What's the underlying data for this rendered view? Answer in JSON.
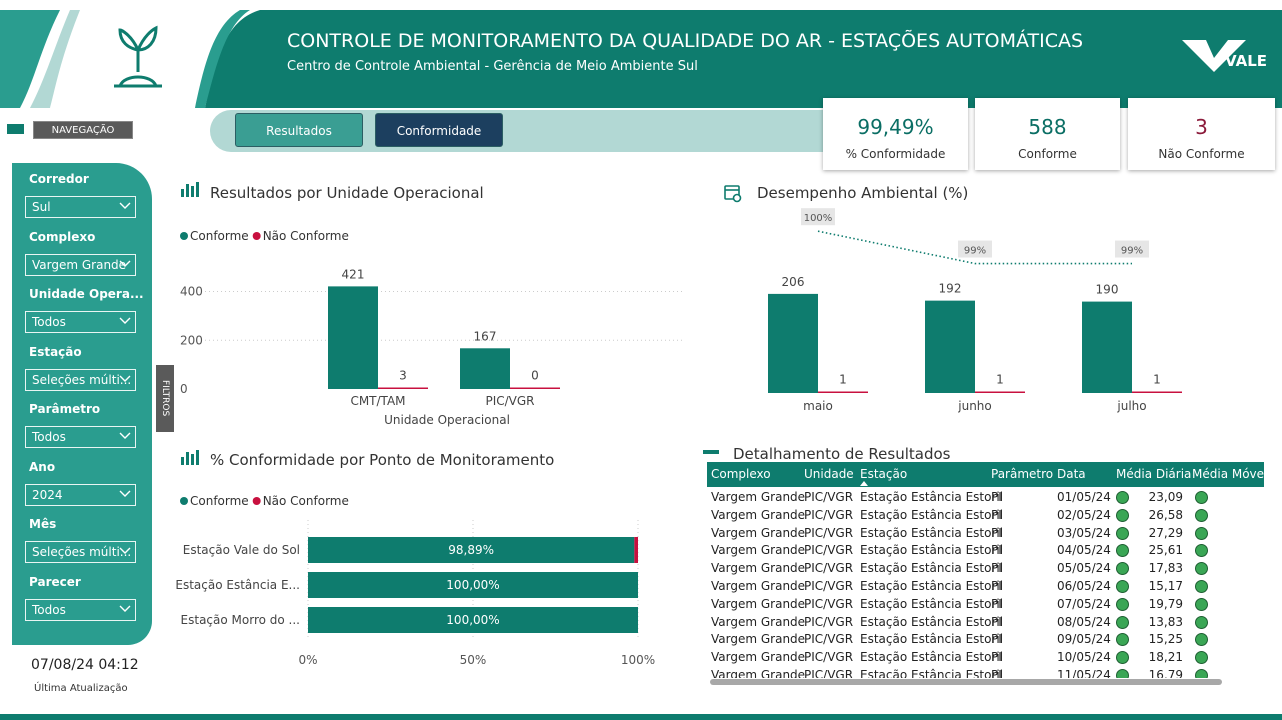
{
  "header": {
    "title": "CONTROLE DE MONITORAMENTO DA QUALIDADE DO AR - ESTAÇÕES AUTOMÁTICAS",
    "subtitle": "Centro de Controle Ambiental - Gerência de Meio Ambiente Sul",
    "logo": "VALE"
  },
  "nav": {
    "label": "NAVEGAÇÃO",
    "buttons": [
      "Resultados",
      "Conformidade"
    ]
  },
  "kpis": [
    {
      "value": "99,49%",
      "label": "% Conformidade"
    },
    {
      "value": "588",
      "label": "Conforme"
    },
    {
      "value": "3",
      "label": "Não Conforme"
    }
  ],
  "filters": [
    {
      "label": "Corredor",
      "value": "Sul"
    },
    {
      "label": "Complexo",
      "value": "Vargem Grande"
    },
    {
      "label": "Unidade Opera...",
      "value": "Todos"
    },
    {
      "label": "Estação",
      "value": "Seleções múlti..."
    },
    {
      "label": "Parâmetro",
      "value": "Todos"
    },
    {
      "label": "Ano",
      "value": "2024"
    },
    {
      "label": "Mês",
      "value": "Seleções múlti..."
    },
    {
      "label": "Parecer",
      "value": "Todos"
    }
  ],
  "filters_tab": "FILTROS",
  "update": {
    "time": "07/08/24 04:12",
    "label": "Última Atualização"
  },
  "chart_data": [
    {
      "type": "bar",
      "title": "Resultados por Unidade Operacional",
      "x_label": "Unidade Operacional",
      "categories": [
        "CMT/TAM",
        "PIC/VGR"
      ],
      "series": [
        {
          "name": "Conforme",
          "color": "#0e7c6e",
          "values": [
            421,
            167
          ]
        },
        {
          "name": "Não Conforme",
          "color": "#c8103f",
          "values": [
            3,
            0
          ]
        }
      ],
      "ylim": [
        0,
        480
      ],
      "yticks": [
        0,
        200,
        400
      ],
      "grid": true,
      "legend": "top-left"
    },
    {
      "type": "combo",
      "title": "Desempenho Ambiental (%)",
      "categories": [
        "maio",
        "junho",
        "julho"
      ],
      "series": [
        {
          "name": "Conforme",
          "color": "#0e7c6e",
          "values": [
            206,
            192,
            190
          ]
        },
        {
          "name": "Não Conforme",
          "color": "#c8103f",
          "values": [
            1,
            1,
            1
          ]
        },
        {
          "color": "#0e7c6e",
          "axis": "y2",
          "values": [
            100,
            99,
            99
          ],
          "value_labels": [
            "100%",
            "99%",
            "99%"
          ]
        }
      ],
      "ylim": [
        0,
        370
      ],
      "y2lim": [
        95,
        100.5
      ]
    },
    {
      "type": "hbar-stacked",
      "title": "% Conformidade por Ponto de Monitoramento",
      "categories": [
        "Estação Vale do Sol",
        "Estação Estância E...",
        "Estação Morro do ..."
      ],
      "series": [
        {
          "name": "Conforme",
          "color": "#0e7c6e",
          "values": [
            98.89,
            100,
            100
          ],
          "value_labels": [
            "98,89%",
            "100,00%",
            "100,00%"
          ]
        },
        {
          "name": "Não Conforme",
          "color": "#c8103f",
          "values": [
            1.11,
            0,
            0
          ]
        }
      ],
      "xlim": [
        0,
        100
      ],
      "xticks": [
        {
          "value": 0,
          "label": "0%"
        },
        {
          "value": 50,
          "label": "50%"
        },
        {
          "value": 100,
          "label": "100%"
        }
      ],
      "grid": true,
      "legend": "top-left"
    }
  ],
  "table": {
    "title": "Detalhamento de Resultados",
    "columns": [
      "Complexo",
      "Unidade",
      "Estação",
      "Parâmetro",
      "Data",
      "Média Diária",
      "Média Móve"
    ],
    "rows": [
      [
        "Vargem Grande",
        "PIC/VGR",
        "Estação Estância Estoril",
        "PI",
        "01/05/24",
        "23,09"
      ],
      [
        "Vargem Grande",
        "PIC/VGR",
        "Estação Estância Estoril",
        "PI",
        "02/05/24",
        "26,58"
      ],
      [
        "Vargem Grande",
        "PIC/VGR",
        "Estação Estância Estoril",
        "PI",
        "03/05/24",
        "27,29"
      ],
      [
        "Vargem Grande",
        "PIC/VGR",
        "Estação Estância Estoril",
        "PI",
        "04/05/24",
        "25,61"
      ],
      [
        "Vargem Grande",
        "PIC/VGR",
        "Estação Estância Estoril",
        "PI",
        "05/05/24",
        "17,83"
      ],
      [
        "Vargem Grande",
        "PIC/VGR",
        "Estação Estância Estoril",
        "PI",
        "06/05/24",
        "15,17"
      ],
      [
        "Vargem Grande",
        "PIC/VGR",
        "Estação Estância Estoril",
        "PI",
        "07/05/24",
        "19,79"
      ],
      [
        "Vargem Grande",
        "PIC/VGR",
        "Estação Estância Estoril",
        "PI",
        "08/05/24",
        "13,83"
      ],
      [
        "Vargem Grande",
        "PIC/VGR",
        "Estação Estância Estoril",
        "PI",
        "09/05/24",
        "15,25"
      ],
      [
        "Vargem Grande",
        "PIC/VGR",
        "Estação Estância Estoril",
        "PI",
        "10/05/24",
        "18,21"
      ],
      [
        "Vargem Grande",
        "PIC/VGR",
        "Estação Estância Estoril",
        "PI",
        "11/05/24",
        "16,79"
      ]
    ]
  }
}
